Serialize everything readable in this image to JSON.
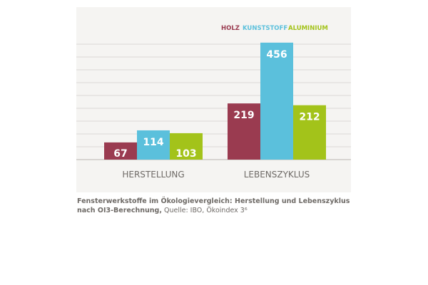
{
  "chart_data": {
    "type": "bar",
    "categories": [
      "HERSTELLUNG",
      "LEBENSZYKLUS"
    ],
    "series": [
      {
        "name": "HOLZ",
        "color": "#9a3b50",
        "values": [
          67,
          219
        ]
      },
      {
        "name": "KUNSTSTOFF",
        "color": "#5bc0dc",
        "values": [
          114,
          456
        ]
      },
      {
        "name": "ALUMINIUM",
        "color": "#a3c31a",
        "values": [
          103,
          212
        ]
      }
    ],
    "ylim": [
      0,
      450
    ],
    "grid_step": 50,
    "grid": true,
    "legend_position": "top-right",
    "title": "",
    "xlabel": "",
    "ylabel": ""
  },
  "caption": {
    "main": "Fensterwerkstoffe im Ökologievergleich: Herstellung und Lebenszyklus nach OI3-Berechnung,",
    "source": " Quelle: IBO, Ökoindex 3⁶"
  }
}
